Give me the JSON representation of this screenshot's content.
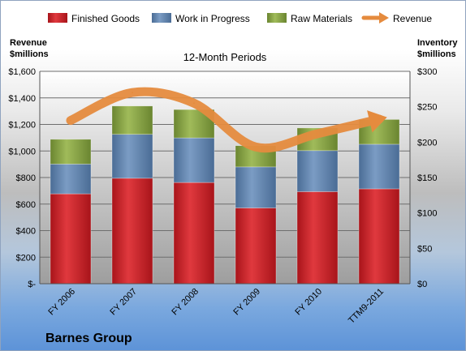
{
  "chart_data": {
    "type": "bar",
    "stacked": true,
    "subtitle": "12-Month Periods",
    "company": "Barnes Group",
    "categories": [
      "FY 2006",
      "FY 2007",
      "FY 2008",
      "FY 2009",
      "FY 2010",
      "TTM9-2011"
    ],
    "series": [
      {
        "name": "Finished Goods",
        "axis": "right",
        "color": "#cc1f25",
        "values": [
          127,
          149,
          143,
          107,
          130,
          134
        ]
      },
      {
        "name": "Work in Progress",
        "axis": "right",
        "color": "#5b7fa8",
        "values": [
          42,
          62,
          63,
          58,
          58,
          63
        ]
      },
      {
        "name": "Raw Materials",
        "axis": "right",
        "color": "#7f9b39",
        "values": [
          35,
          40,
          40,
          30,
          32,
          35
        ]
      },
      {
        "name": "Revenue",
        "axis": "left",
        "type": "line",
        "color": "#e58b3e",
        "values": [
          1230,
          1440,
          1360,
          1030,
          1130,
          1240
        ]
      }
    ],
    "left_axis": {
      "label_line1": "Revenue",
      "label_line2": "$millions",
      "ylim": [
        0,
        1600
      ],
      "ticks": [
        "$-",
        "$200",
        "$400",
        "$600",
        "$800",
        "$1,000",
        "$1,200",
        "$1,400",
        "$1,600"
      ]
    },
    "right_axis": {
      "label_line1": "Inventory",
      "label_line2": "$millions",
      "ylim": [
        0,
        300
      ],
      "ticks": [
        "$0",
        "$50",
        "$100",
        "$150",
        "$200",
        "$250",
        "$300"
      ]
    },
    "grid": true,
    "legend_position": "top"
  }
}
